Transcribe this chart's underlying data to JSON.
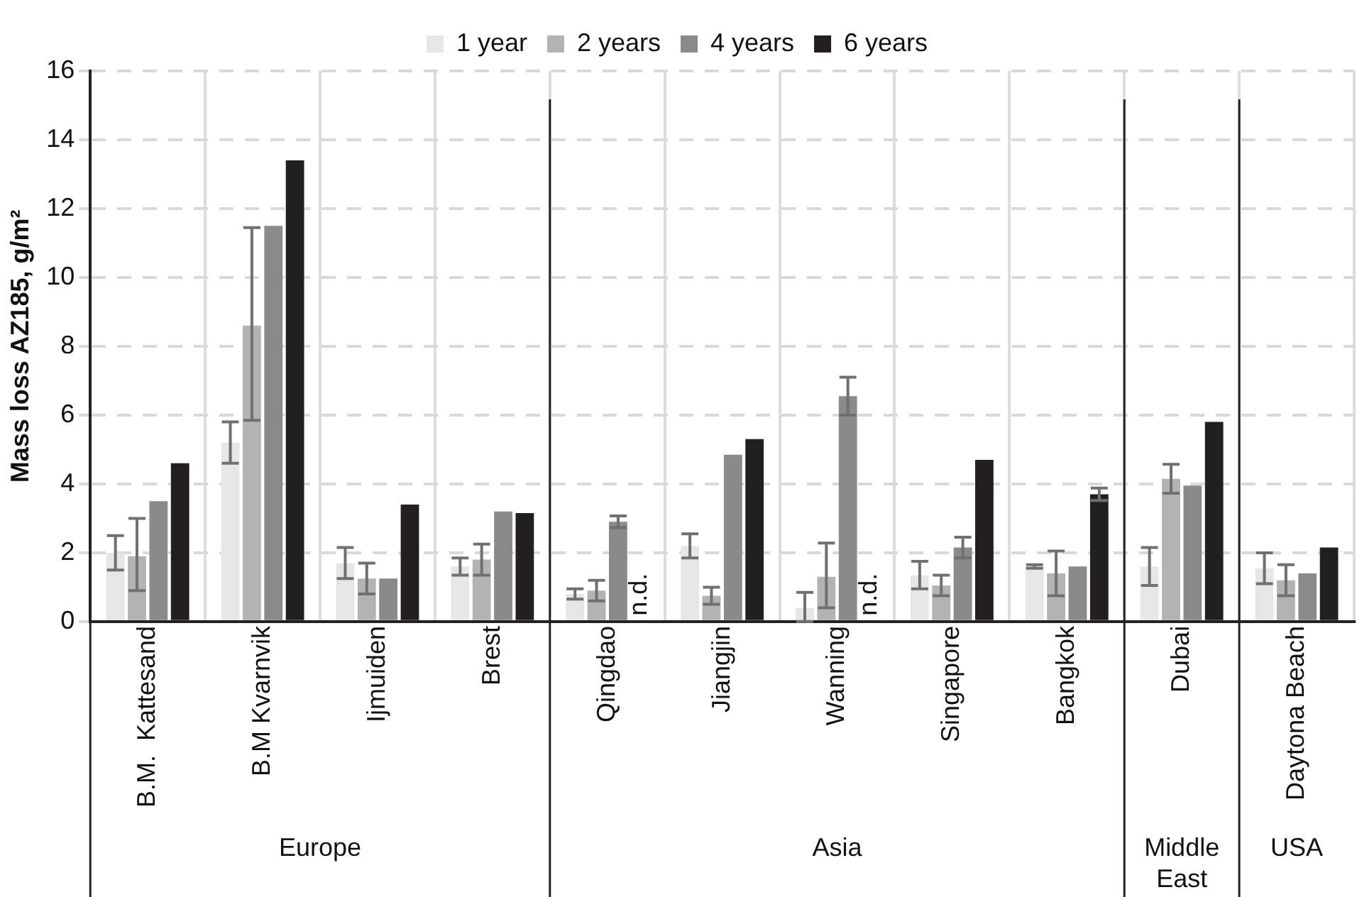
{
  "chart_data": {
    "type": "bar",
    "ylabel": "Mass loss AZ185, g/m²",
    "categories": [
      "B.M.  Kattesand",
      "B.M Kvarnvik",
      "Ijmuiden",
      "Brest",
      "Qingdao",
      "Jiangjin",
      "Wanning",
      "Singapore",
      "Bangkok",
      "Dubai",
      "Daytona Beach"
    ],
    "series": [
      {
        "name": "1 year",
        "color": "#e6e6e6",
        "values": [
          2.0,
          5.2,
          1.7,
          1.6,
          0.8,
          2.2,
          0.4,
          1.35,
          1.6,
          1.6,
          1.55
        ],
        "errors": [
          0.5,
          0.6,
          0.45,
          0.25,
          0.15,
          0.35,
          [
            0,
            0.85
          ],
          0.4,
          0.05,
          0.55,
          0.45
        ]
      },
      {
        "name": "2 years",
        "color": "#b3b3b3",
        "values": [
          1.9,
          8.6,
          1.25,
          1.8,
          0.9,
          0.75,
          1.3,
          1.05,
          1.4,
          4.15,
          1.2
        ],
        "errors": [
          [
            0.9,
            3.0
          ],
          [
            5.85,
            11.45
          ],
          0.45,
          0.45,
          0.3,
          0.25,
          [
            0.4,
            2.28
          ],
          0.3,
          0.65,
          0.42,
          0.45
        ]
      },
      {
        "name": "4 years",
        "color": "#8a8a8a",
        "values": [
          3.5,
          11.5,
          1.25,
          3.2,
          2.9,
          4.85,
          6.55,
          2.15,
          1.6,
          3.95,
          1.4
        ],
        "errors": [
          null,
          null,
          null,
          null,
          0.17,
          null,
          0.55,
          0.3,
          null,
          null,
          null
        ]
      },
      {
        "name": "6 years",
        "color": "#231f20",
        "values": [
          4.6,
          13.4,
          3.4,
          3.15,
          null,
          5.3,
          null,
          4.7,
          3.7,
          5.8,
          2.15
        ],
        "errors": [
          null,
          null,
          null,
          null,
          null,
          null,
          null,
          null,
          0.18,
          null,
          null
        ]
      }
    ],
    "ylim": [
      0,
      16
    ],
    "yticks": [
      0,
      2,
      4,
      6,
      8,
      10,
      12,
      14,
      16
    ],
    "grid": true,
    "legend": "top",
    "annotations": [
      {
        "text": "n.d.",
        "x": "Qingdao",
        "y": 0
      },
      {
        "text": "n.d.",
        "x": "Wanning",
        "y": 0
      },
      "Europe",
      "Asia",
      "Middle East",
      "USA"
    ]
  }
}
